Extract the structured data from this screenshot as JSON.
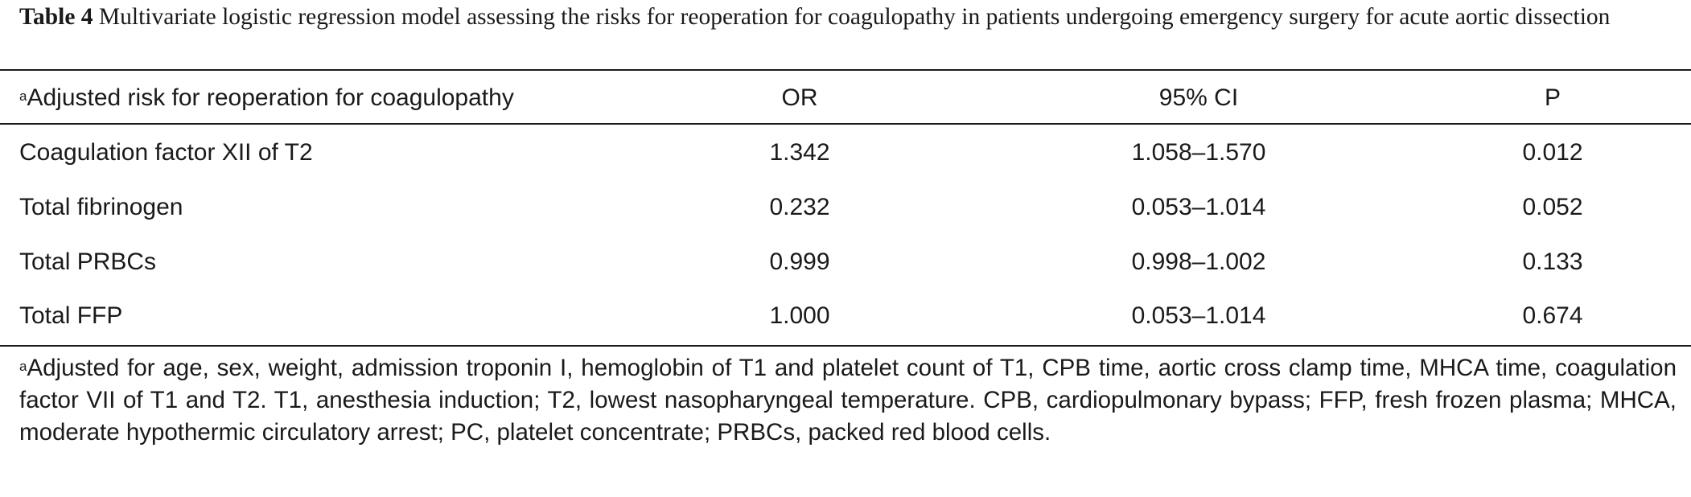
{
  "caption": {
    "label": "Table 4",
    "text": "Multivariate logistic regression model assessing the risks for reoperation for coagulopathy in patients undergoing emergency surgery for acute aortic dissection"
  },
  "table": {
    "header": {
      "marker": "a",
      "name": "Adjusted risk for reoperation for coagulopathy",
      "or": "OR",
      "ci": "95% CI",
      "p": "P"
    },
    "rows": [
      {
        "name": "Coagulation factor XII of T2",
        "or": "1.342",
        "ci": "1.058–1.570",
        "p": "0.012"
      },
      {
        "name": "Total fibrinogen",
        "or": "0.232",
        "ci": "0.053–1.014",
        "p": "0.052"
      },
      {
        "name": "Total PRBCs",
        "or": "0.999",
        "ci": "0.998–1.002",
        "p": "0.133"
      },
      {
        "name": "Total FFP",
        "or": "1.000",
        "ci": "0.053–1.014",
        "p": "0.674"
      }
    ]
  },
  "footnote": {
    "marker": "a",
    "text": "Adjusted for age, sex, weight, admission troponin I, hemoglobin of T1 and platelet count of T1, CPB time, aortic cross clamp time, MHCA time, coagulation factor VII of T1 and T2. T1, anesthesia induction; T2, lowest nasopharyngeal temperature. CPB, cardiopulmonary bypass; FFP, fresh frozen plasma; MHCA, moderate hypothermic circulatory arrest; PC, platelet concentrate; PRBCs, packed red blood cells."
  }
}
